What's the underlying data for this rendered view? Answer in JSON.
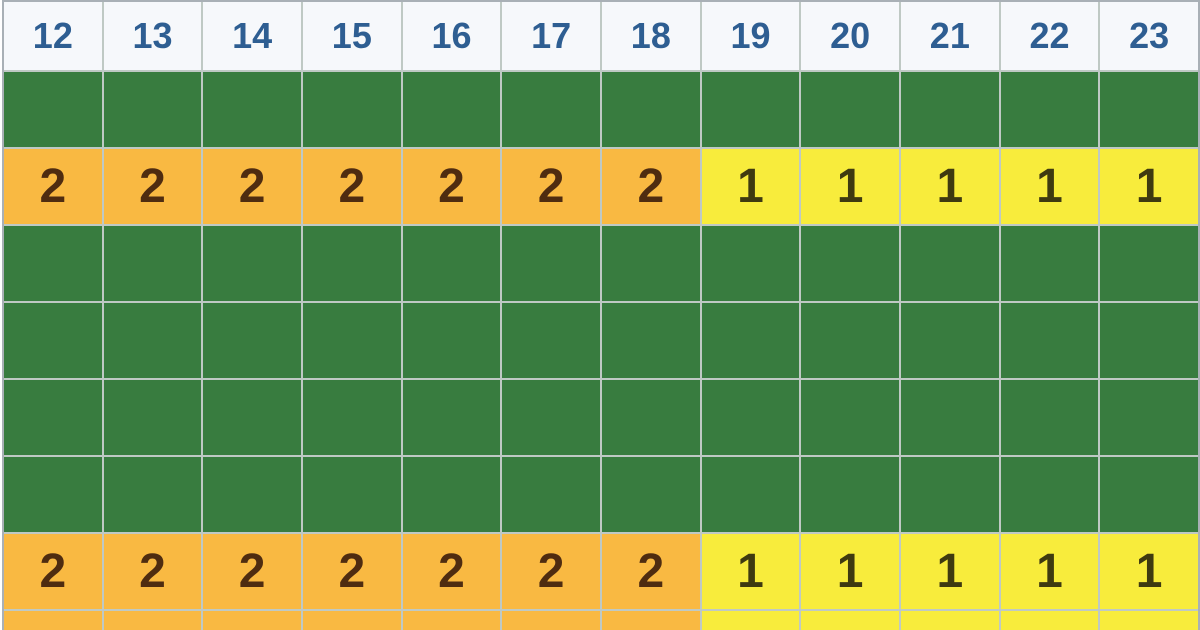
{
  "table": {
    "name": "hourly-forecast-table",
    "header": {
      "hours": [
        "12",
        "13",
        "14",
        "15",
        "16",
        "17",
        "18",
        "19",
        "20",
        "21",
        "22",
        "23"
      ]
    },
    "rows": [
      {
        "name": "band-row-1",
        "bg": [
          "green",
          "green",
          "green",
          "green",
          "green",
          "green",
          "green",
          "green",
          "green",
          "green",
          "green",
          "green"
        ],
        "text": [
          "",
          "",
          "",
          "",
          "",
          "",
          "",
          "",
          "",
          "",
          "",
          ""
        ]
      },
      {
        "name": "value-row-1",
        "bg": [
          "orange",
          "orange",
          "orange",
          "orange",
          "orange",
          "orange",
          "orange",
          "yellow",
          "yellow",
          "yellow",
          "yellow",
          "yellow"
        ],
        "text": [
          "2",
          "2",
          "2",
          "2",
          "2",
          "2",
          "2",
          "1",
          "1",
          "1",
          "1",
          "1"
        ]
      },
      {
        "name": "band-row-2",
        "bg": [
          "green",
          "green",
          "green",
          "green",
          "green",
          "green",
          "green",
          "green",
          "green",
          "green",
          "green",
          "green"
        ],
        "text": [
          "",
          "",
          "",
          "",
          "",
          "",
          "",
          "",
          "",
          "",
          "",
          ""
        ]
      },
      {
        "name": "band-row-3",
        "bg": [
          "green",
          "green",
          "green",
          "green",
          "green",
          "green",
          "green",
          "green",
          "green",
          "green",
          "green",
          "green"
        ],
        "text": [
          "",
          "",
          "",
          "",
          "",
          "",
          "",
          "",
          "",
          "",
          "",
          ""
        ]
      },
      {
        "name": "band-row-4",
        "bg": [
          "green",
          "green",
          "green",
          "green",
          "green",
          "green",
          "green",
          "green",
          "green",
          "green",
          "green",
          "green"
        ],
        "text": [
          "",
          "",
          "",
          "",
          "",
          "",
          "",
          "",
          "",
          "",
          "",
          ""
        ]
      },
      {
        "name": "band-row-5",
        "bg": [
          "green",
          "green",
          "green",
          "green",
          "green",
          "green",
          "green",
          "green",
          "green",
          "green",
          "green",
          "green"
        ],
        "text": [
          "",
          "",
          "",
          "",
          "",
          "",
          "",
          "",
          "",
          "",
          "",
          ""
        ]
      },
      {
        "name": "value-row-2",
        "bg": [
          "orange",
          "orange",
          "orange",
          "orange",
          "orange",
          "orange",
          "orange",
          "yellow",
          "yellow",
          "yellow",
          "yellow",
          "yellow"
        ],
        "text": [
          "2",
          "2",
          "2",
          "2",
          "2",
          "2",
          "2",
          "1",
          "1",
          "1",
          "1",
          "1"
        ]
      },
      {
        "name": "partial-row",
        "bg": [
          "orange",
          "orange",
          "orange",
          "orange",
          "orange",
          "orange",
          "orange",
          "yellow",
          "yellow",
          "yellow",
          "yellow",
          "yellow"
        ],
        "text": [
          "",
          "",
          "",
          "",
          "",
          "",
          "",
          "",
          "",
          "",
          "",
          ""
        ]
      }
    ],
    "colors": {
      "green": "#387c3f",
      "orange": "#f9b942",
      "yellow": "#f8ec3c",
      "header_bg": "#f6f8fb",
      "header_text": "#2e5e92",
      "value_text_orange": "#4f2c10",
      "value_text_yellow": "#3f3a10",
      "grid_line": "#bfc9c4",
      "outer_border": "#a9b0b6"
    }
  }
}
